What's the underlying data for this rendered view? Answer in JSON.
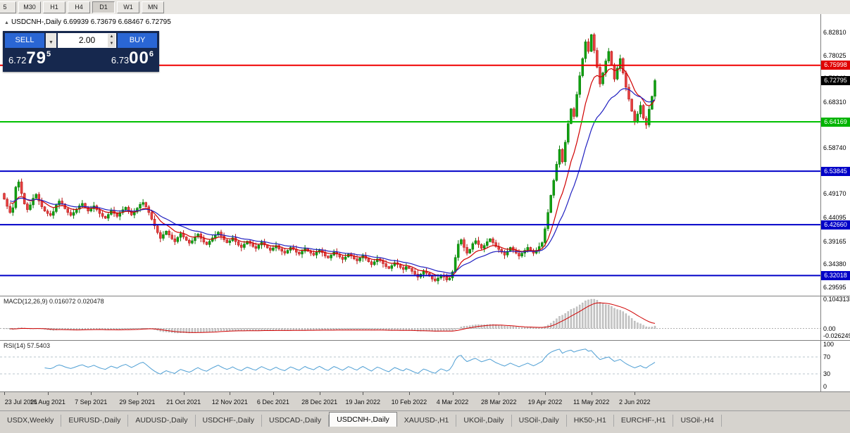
{
  "toolbar": {
    "timeframes": [
      "5",
      "M30",
      "H1",
      "H4",
      "D1",
      "W1",
      "MN"
    ],
    "active": "D1"
  },
  "symbol_info": {
    "arrow": "▲",
    "text": "USDCNH-,Daily 6.69939 6.73679 6.68467 6.72795"
  },
  "trade_panel": {
    "sell_label": "SELL",
    "buy_label": "BUY",
    "volume": "2.00",
    "sell_price": {
      "prefix": "6.72",
      "big": "79",
      "sup": "5"
    },
    "buy_price": {
      "prefix": "6.73",
      "big": "00",
      "sup": "6"
    }
  },
  "price_axis": {
    "p_top": 6.867,
    "p_bottom": 6.278,
    "labels": [
      {
        "text": "6.82810",
        "p": 6.8281
      },
      {
        "text": "6.78025",
        "p": 6.78025
      },
      {
        "text": "6.73240",
        "p": 6.7324
      },
      {
        "text": "6.68310",
        "p": 6.6831
      },
      {
        "text": "6.63525",
        "p": 6.63525
      },
      {
        "text": "6.58740",
        "p": 6.5874
      },
      {
        "text": "6.53955",
        "p": 6.53955
      },
      {
        "text": "6.49170",
        "p": 6.4917
      },
      {
        "text": "6.44095",
        "p": 6.44095
      },
      {
        "text": "6.39165",
        "p": 6.39165
      },
      {
        "text": "6.34380",
        "p": 6.3438
      },
      {
        "text": "6.29595",
        "p": 6.29595
      }
    ],
    "badges": [
      {
        "text": "6.75998",
        "p": 6.75998,
        "color": "#e00000"
      },
      {
        "text": "6.72795",
        "p": 6.72795,
        "color": "#000000"
      },
      {
        "text": "6.64169",
        "p": 6.64169,
        "color": "#00b400"
      },
      {
        "text": "6.53845",
        "p": 6.53845,
        "color": "#0000c8"
      },
      {
        "text": "6.42660",
        "p": 6.4266,
        "color": "#0000c8"
      },
      {
        "text": "6.32018",
        "p": 6.32018,
        "color": "#0000c8"
      }
    ]
  },
  "chart_data": {
    "type": "candlestick",
    "symbol": "USDCNH-,Daily",
    "open_values": "6.69939",
    "high_value": "6.73679",
    "low_value": "6.68467",
    "close_value": "6.72795",
    "first_open": 6.492,
    "closes": [
      6.48,
      6.465,
      6.452,
      6.462,
      6.505,
      6.516,
      6.492,
      6.47,
      6.458,
      6.468,
      6.482,
      6.49,
      6.476,
      6.464,
      6.455,
      6.45,
      6.446,
      6.454,
      6.468,
      6.476,
      6.47,
      6.46,
      6.452,
      6.446,
      6.452,
      6.459,
      6.466,
      6.471,
      6.462,
      6.455,
      6.46,
      6.466,
      6.458,
      6.45,
      6.444,
      6.44,
      6.448,
      6.456,
      6.45,
      6.444,
      6.452,
      6.458,
      6.463,
      6.455,
      6.447,
      6.453,
      6.461,
      6.469,
      6.473,
      6.464,
      6.452,
      6.438,
      6.424,
      6.41,
      6.398,
      6.406,
      6.413,
      6.405,
      6.397,
      6.391,
      6.4,
      6.408,
      6.401,
      6.394,
      6.388,
      6.393,
      6.401,
      6.407,
      6.398,
      6.39,
      6.385,
      6.392,
      6.399,
      6.405,
      6.411,
      6.403,
      6.395,
      6.389,
      6.393,
      6.399,
      6.391,
      6.384,
      6.379,
      6.386,
      6.392,
      6.387,
      6.381,
      6.377,
      6.384,
      6.39,
      6.384,
      6.378,
      6.373,
      6.378,
      6.383,
      6.376,
      6.371,
      6.367,
      6.373,
      6.379,
      6.375,
      6.369,
      6.365,
      6.371,
      6.377,
      6.371,
      6.367,
      6.363,
      6.369,
      6.374,
      6.368,
      6.361,
      6.357,
      6.363,
      6.369,
      6.365,
      6.359,
      6.354,
      6.359,
      6.365,
      6.361,
      6.355,
      6.351,
      6.357,
      6.362,
      6.356,
      6.349,
      6.343,
      6.349,
      6.355,
      6.351,
      6.345,
      6.339,
      6.335,
      6.341,
      6.347,
      6.343,
      6.337,
      6.333,
      6.339,
      6.335,
      6.329,
      6.323,
      6.317,
      6.323,
      6.329,
      6.325,
      6.319,
      6.313,
      6.309,
      6.315,
      6.321,
      6.317,
      6.311,
      6.315,
      6.328,
      6.358,
      6.386,
      6.395,
      6.379,
      6.367,
      6.375,
      6.387,
      6.393,
      6.385,
      6.377,
      6.383,
      6.391,
      6.397,
      6.389,
      6.381,
      6.375,
      6.369,
      6.363,
      6.371,
      6.379,
      6.373,
      6.367,
      6.361,
      6.367,
      6.373,
      6.379,
      6.373,
      6.367,
      6.373,
      6.381,
      6.389,
      6.418,
      6.452,
      6.488,
      6.519,
      6.553,
      6.584,
      6.558,
      6.599,
      6.638,
      6.669,
      6.653,
      6.699,
      6.738,
      6.774,
      6.809,
      6.789,
      6.824,
      6.791,
      6.756,
      6.721,
      6.744,
      6.769,
      6.789,
      6.761,
      6.731,
      6.754,
      6.774,
      6.744,
      6.714,
      6.689,
      6.664,
      6.641,
      6.658,
      6.676,
      6.649,
      6.635,
      6.668,
      6.695,
      6.728
    ],
    "ma_fast_period": 10,
    "ma_slow_period": 21,
    "current_price": 6.72795,
    "hlines": [
      {
        "price": 6.75998,
        "color": "#f00000",
        "width": 2
      },
      {
        "price": 6.64169,
        "color": "#00c000",
        "width": 2
      },
      {
        "price": 6.53845,
        "color": "#0000c8",
        "width": 2
      },
      {
        "price": 6.4266,
        "color": "#0000c8",
        "width": 2
      },
      {
        "price": 6.32018,
        "color": "#0000c8",
        "width": 2
      }
    ],
    "dates": [
      {
        "label": "23 Jul 2021",
        "i": 0
      },
      {
        "label": "16 Aug 2021",
        "i": 15
      },
      {
        "label": "7 Sep 2021",
        "i": 30
      },
      {
        "label": "29 Sep 2021",
        "i": 46
      },
      {
        "label": "21 Oct 2021",
        "i": 62
      },
      {
        "label": "12 Nov 2021",
        "i": 78
      },
      {
        "label": "6 Dec 2021",
        "i": 93
      },
      {
        "label": "28 Dec 2021",
        "i": 109
      },
      {
        "label": "19 Jan 2022",
        "i": 124
      },
      {
        "label": "10 Feb 2022",
        "i": 140
      },
      {
        "label": "4 Mar 2022",
        "i": 155
      },
      {
        "label": "28 Mar 2022",
        "i": 171
      },
      {
        "label": "19 Apr 2022",
        "i": 187
      },
      {
        "label": "11 May 2022",
        "i": 203
      },
      {
        "label": "2 Jun 2022",
        "i": 218
      }
    ],
    "macd": {
      "label": "MACD(12,26,9) 0.016072 0.020478",
      "fast": 12,
      "slow": 26,
      "signal": 9,
      "vmax": 0.104313,
      "vmin": -0.026249,
      "axis": [
        {
          "text": "0.104313",
          "v": 0.104313
        },
        {
          "text": "0.00",
          "v": 0
        },
        {
          "text": "-0.026249",
          "v": -0.026249
        }
      ]
    },
    "rsi": {
      "label": "RSI(14) 57.5403",
      "period": 14,
      "levels": [
        70,
        30
      ],
      "axis": [
        {
          "text": "100",
          "v": 100
        },
        {
          "text": "70",
          "v": 70
        },
        {
          "text": "30",
          "v": 30
        },
        {
          "text": "0",
          "v": 0
        }
      ]
    }
  },
  "tabs": {
    "active_index": 5,
    "items": [
      "USDX,Weekly",
      "EURUSD-,Daily",
      "AUDUSD-,Daily",
      "USDCHF-,Daily",
      "USDCAD-,Daily",
      "USDCNH-,Daily",
      "XAUUSD-,H1",
      "UKOil-,Daily",
      "USOil-,Daily",
      "HK50-,H1",
      "EURCHF-,H1",
      "USOil-,H4"
    ]
  },
  "colors": {
    "up_fill": "#10a010",
    "up_stroke": "#067a06",
    "down_fill": "#e64040",
    "down_stroke": "#b51212",
    "ma_fast": "#d00000",
    "ma_slow": "#2020c0",
    "macd_bar": "#c8c8c8",
    "macd_bar_stroke": "#a2a2a2",
    "macd_signal": "#d00000",
    "rsi_line": "#4f9fd4",
    "rsi_level": "#b8c4cc"
  }
}
